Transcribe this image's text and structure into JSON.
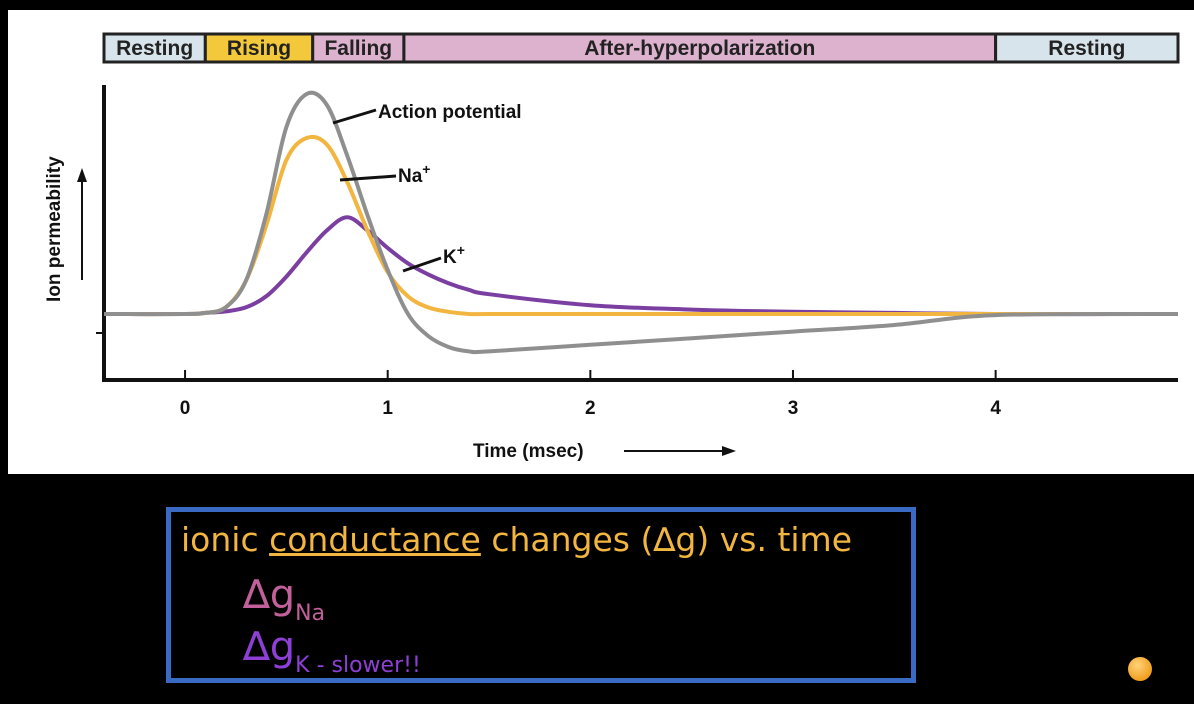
{
  "chart_data": {
    "type": "line",
    "phases": [
      "Resting",
      "Rising",
      "Falling",
      "After-hyperpolarization",
      "Resting"
    ],
    "phase_bounds": [
      [
        -0.4,
        0.1
      ],
      [
        0.1,
        0.63
      ],
      [
        0.63,
        1.08
      ],
      [
        1.08,
        4.0
      ],
      [
        4.0,
        4.9
      ]
    ],
    "phase_colors": [
      "#d8e4ec",
      "#f3c93b",
      "#dcb2cf",
      "#dcb2cf",
      "#d8e4ec"
    ],
    "xlabel": "Time (msec)",
    "ylabel": "Ion permeability",
    "xticks": [
      "0",
      "1",
      "2",
      "3",
      "4"
    ],
    "xlim": [
      -0.4,
      4.9
    ],
    "ylim": [
      -0.3,
      1.0
    ],
    "series": [
      {
        "name": "Action potential",
        "color": "#8f8f8f",
        "x": [
          -0.4,
          0,
          0.1,
          0.2,
          0.3,
          0.4,
          0.5,
          0.6,
          0.7,
          0.8,
          0.9,
          1.0,
          1.1,
          1.2,
          1.3,
          1.4,
          1.5,
          2.0,
          2.5,
          3.0,
          3.5,
          4.0,
          4.9
        ],
        "y": [
          0,
          0,
          0.005,
          0.03,
          0.15,
          0.45,
          0.85,
          1.0,
          0.95,
          0.72,
          0.45,
          0.2,
          0.0,
          -0.1,
          -0.15,
          -0.17,
          -0.17,
          -0.14,
          -0.11,
          -0.08,
          -0.05,
          -0.005,
          0
        ]
      },
      {
        "name": "Na+",
        "color": "#f2b640",
        "x": [
          -0.4,
          0,
          0.1,
          0.2,
          0.3,
          0.4,
          0.5,
          0.6,
          0.7,
          0.8,
          0.9,
          1.0,
          1.1,
          1.2,
          1.3,
          1.4,
          1.5,
          2.0,
          2.5,
          3.0,
          3.5,
          4.0,
          4.9
        ],
        "y": [
          0,
          0,
          0.005,
          0.03,
          0.15,
          0.4,
          0.7,
          0.8,
          0.77,
          0.6,
          0.38,
          0.19,
          0.08,
          0.03,
          0.01,
          0,
          0,
          0,
          0,
          0,
          0,
          0,
          0
        ]
      },
      {
        "name": "K+",
        "color": "#7a3fa0",
        "x": [
          -0.4,
          0,
          0.1,
          0.2,
          0.3,
          0.4,
          0.5,
          0.6,
          0.7,
          0.8,
          0.9,
          1.0,
          1.1,
          1.2,
          1.3,
          1.4,
          1.5,
          2.0,
          2.5,
          3.0,
          3.5,
          4.0,
          4.9
        ],
        "y": [
          0,
          0,
          0.005,
          0.012,
          0.03,
          0.08,
          0.17,
          0.28,
          0.38,
          0.44,
          0.38,
          0.3,
          0.23,
          0.18,
          0.14,
          0.11,
          0.09,
          0.04,
          0.02,
          0.01,
          0.005,
          0,
          0
        ]
      }
    ]
  },
  "caption": {
    "pre": "ionic ",
    "underlined": "conductance",
    "post": " changes (∆g) vs. time",
    "delta_g": "∆g",
    "na_subscript": "Na",
    "k_subscript": "K",
    "k_note": "  - slower!!"
  },
  "colors": {
    "caption_text": "#f2b640",
    "caption_border": "#3a6bc4",
    "dg_na": "#c1609a",
    "dg_k": "#8e3fd6"
  }
}
